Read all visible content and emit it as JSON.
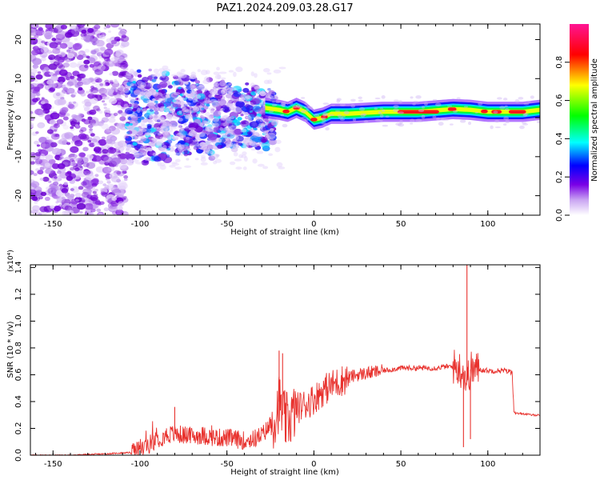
{
  "title": "PAZ1.2024.209.03.28.G17",
  "chart_data": [
    {
      "type": "heatmap",
      "xlabel": "Height of straight line (km)",
      "ylabel": "Frequency (Hz)",
      "xlim": [
        -163,
        130
      ],
      "ylim": [
        -25,
        24
      ],
      "xticks": [
        -150,
        -100,
        -50,
        0,
        50,
        100
      ],
      "yticks": [
        -20,
        -10,
        0,
        10,
        20
      ],
      "colorbar": {
        "label": "Normalized spectral amplitude",
        "range": [
          0.0,
          1.0
        ],
        "ticks": [
          0.0,
          0.2,
          0.4,
          0.6,
          0.8
        ],
        "colormap": [
          "#ffffff",
          "#b37df0",
          "#7a00e6",
          "#0000ff",
          "#00ffff",
          "#00ff00",
          "#ffff00",
          "#ff0000",
          "#ff1aa3"
        ]
      },
      "description_regions": [
        {
          "x": [
            -163,
            -108
          ],
          "freq": [
            -25,
            24
          ],
          "amplitude": 0.15
        },
        {
          "x": [
            -108,
            -22
          ],
          "freq": [
            -12,
            10
          ],
          "amplitude": 0.2
        },
        {
          "x": [
            -22,
            130
          ],
          "freq": [
            0,
            3
          ],
          "amplitude": 0.8
        }
      ],
      "ridge": {
        "x": [
          -28,
          -20,
          -15,
          -10,
          -5,
          0,
          5,
          10,
          20,
          40,
          60,
          80,
          90,
          100,
          110,
          120,
          130
        ],
        "freq": [
          2.5,
          2,
          1.5,
          2.5,
          1.5,
          -0.5,
          0,
          1,
          1,
          1.5,
          1.5,
          2.2,
          2,
          1.5,
          1.5,
          1.5,
          2
        ]
      }
    },
    {
      "type": "line",
      "xlabel": "Height of straight line (km)",
      "ylabel": "SNR (10 * v/v)",
      "yscale_label": "(x10⁴)",
      "xlim": [
        -163,
        130
      ],
      "ylim": [
        0.0,
        1.42
      ],
      "xticks": [
        -150,
        -100,
        -50,
        0,
        50,
        100
      ],
      "yticks": [
        0.0,
        0.2,
        0.4,
        0.6,
        0.8,
        1.0,
        1.2,
        1.4
      ],
      "series": [
        {
          "color": "#e8322e",
          "x": [
            -163,
            -140,
            -120,
            -105,
            -100,
            -95,
            -90,
            -85,
            -80,
            -75,
            -70,
            -65,
            -60,
            -55,
            -50,
            -45,
            -40,
            -35,
            -30,
            -25,
            -22,
            -20,
            -18,
            -16,
            -14,
            -12,
            -10,
            -5,
            0,
            5,
            10,
            15,
            20,
            25,
            30,
            35,
            40,
            45,
            50,
            55,
            60,
            65,
            70,
            75,
            80,
            83,
            86,
            88,
            89,
            90,
            92,
            95,
            100,
            105,
            110,
            114,
            115,
            116,
            120,
            125,
            130
          ],
          "y": [
            0.0,
            0.0,
            0.01,
            0.02,
            0.05,
            0.08,
            0.12,
            0.15,
            0.16,
            0.15,
            0.14,
            0.15,
            0.14,
            0.13,
            0.13,
            0.12,
            0.11,
            0.12,
            0.15,
            0.22,
            0.3,
            0.4,
            0.3,
            0.25,
            0.28,
            0.3,
            0.35,
            0.38,
            0.42,
            0.48,
            0.52,
            0.55,
            0.58,
            0.6,
            0.61,
            0.62,
            0.63,
            0.64,
            0.65,
            0.65,
            0.65,
            0.65,
            0.65,
            0.66,
            0.66,
            0.65,
            0.62,
            0.55,
            0.6,
            0.64,
            0.64,
            0.64,
            0.63,
            0.63,
            0.63,
            0.62,
            0.33,
            0.31,
            0.31,
            0.3,
            0.3
          ],
          "spikes": [
            {
              "x": -20,
              "y": 0.78
            },
            {
              "x": -18,
              "y": 0.76
            },
            {
              "x": -80,
              "y": 0.36
            },
            {
              "x": 88,
              "y": 1.42
            },
            {
              "x": 86,
              "y": 0.06
            },
            {
              "x": 90,
              "y": 0.12
            }
          ]
        }
      ]
    }
  ]
}
